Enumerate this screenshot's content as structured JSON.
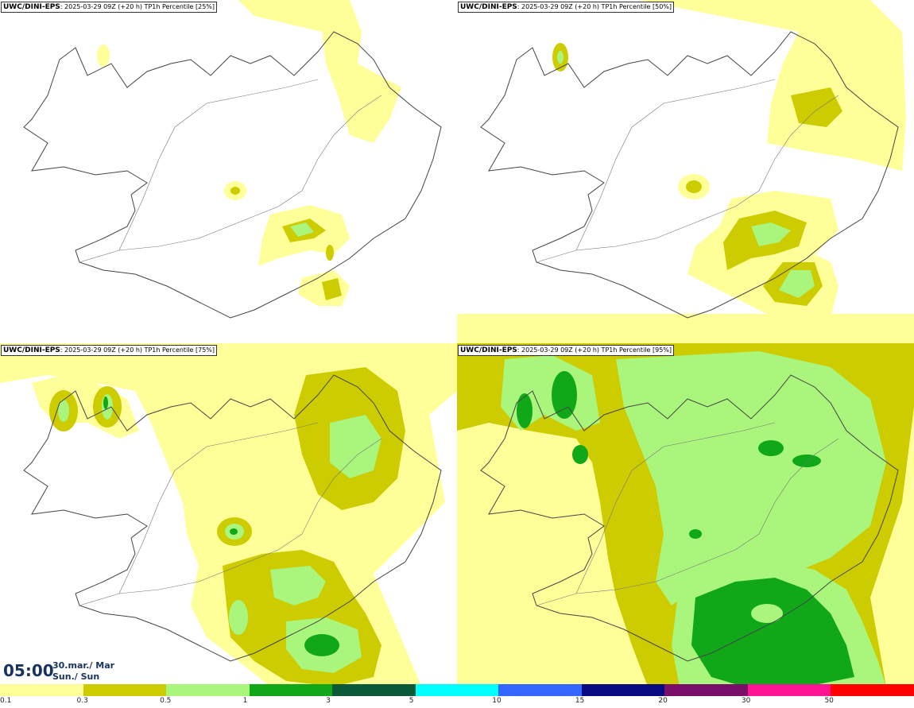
{
  "panels": [
    {
      "title_brand": "UWC/DINI-EPS",
      "title_rest": ": 2025-03-29 09Z (+20 h) TP1h Percentile [25%]",
      "percentile": 25
    },
    {
      "title_brand": "UWC/DINI-EPS",
      "title_rest": ": 2025-03-29 09Z (+20 h) TP1h Percentile [50%]",
      "percentile": 50
    },
    {
      "title_brand": "UWC/DINI-EPS",
      "title_rest": ": 2025-03-29 09Z (+20 h) TP1h Percentile [75%]",
      "percentile": 75
    },
    {
      "title_brand": "UWC/DINI-EPS",
      "title_rest": ": 2025-03-29 09Z (+20 h) TP1h Percentile [95%]",
      "percentile": 95
    }
  ],
  "time": {
    "clock": "05:00",
    "date_line": "30.mar./ Mar",
    "day_line": "Sun./ Sun"
  },
  "legend": {
    "ticks": [
      "0.1",
      "0.3",
      "0.5",
      "1",
      "3",
      "5",
      "10",
      "15",
      "20",
      "30",
      "50"
    ],
    "colors": [
      "#ffff9a",
      "#cccc00",
      "#aaf57c",
      "#10a818",
      "#0a5a3a",
      "#00ffff",
      "#3366ff",
      "#0a0a80",
      "#7a0f6b",
      "#ff1493",
      "#ff0000"
    ]
  }
}
